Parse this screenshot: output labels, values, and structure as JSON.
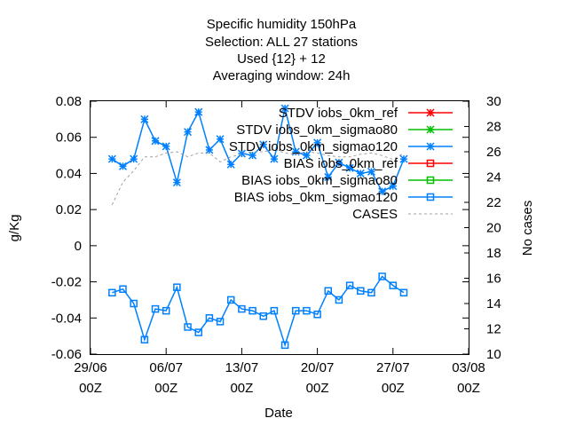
{
  "chart_data": {
    "type": "line",
    "title_lines": [
      "Specific humidity 150hPa",
      "Selection: ALL     27 stations",
      "Used {12} + 12",
      "Averaging window: 24h"
    ],
    "xlabel": "Date",
    "ylabel": "g/Kg",
    "y2label": "No cases",
    "xlim": [
      "2025-06-29 00:00",
      "2025-08-03 00:00"
    ],
    "ylim": [
      -0.06,
      0.08
    ],
    "y2lim": [
      10,
      30
    ],
    "x_ticks": [
      {
        "line1": "29/06",
        "line2": "00Z",
        "day": 0
      },
      {
        "line1": "06/07",
        "line2": "00Z",
        "day": 7
      },
      {
        "line1": "13/07",
        "line2": "00Z",
        "day": 14
      },
      {
        "line1": "20/07",
        "line2": "00Z",
        "day": 21
      },
      {
        "line1": "27/07",
        "line2": "00Z",
        "day": 28
      },
      {
        "line1": "03/08",
        "line2": "00Z",
        "day": 35
      }
    ],
    "y_ticks": [
      "0.08",
      "0.06",
      "0.04",
      "0.02",
      "0",
      "-0.02",
      "-0.04",
      "-0.06"
    ],
    "y_tick_values": [
      0.08,
      0.06,
      0.04,
      0.02,
      0,
      -0.02,
      -0.04,
      -0.06
    ],
    "y2_ticks": [
      "30",
      "28",
      "26",
      "24",
      "22",
      "20",
      "18",
      "16",
      "14",
      "12",
      "10"
    ],
    "y2_tick_values": [
      30,
      28,
      26,
      24,
      22,
      20,
      18,
      16,
      14,
      12,
      10
    ],
    "grid": false,
    "legend_position": "top-right",
    "x_days": [
      2,
      3,
      4,
      5,
      6,
      7,
      8,
      9,
      10,
      11,
      12,
      13,
      14,
      15,
      16,
      17,
      18,
      19,
      20,
      21,
      22,
      23,
      24,
      25,
      26,
      27,
      28,
      29,
      30,
      31
    ],
    "series": [
      {
        "name": "STDV iobs_0km_ref",
        "color": "#ff0000",
        "marker": "star",
        "axis": "y1",
        "values": []
      },
      {
        "name": "STDV iobs_0km_sigmao80",
        "color": "#00c000",
        "marker": "star",
        "axis": "y1",
        "values": []
      },
      {
        "name": "STDV iobs_0km_sigmao120",
        "color": "#0080ff",
        "marker": "star",
        "axis": "y1",
        "values": [
          0.048,
          0.044,
          0.048,
          0.07,
          0.058,
          0.055,
          0.035,
          0.063,
          0.074,
          0.053,
          0.059,
          0.045,
          0.051,
          0.05,
          0.056,
          0.048,
          0.076,
          0.052,
          0.05,
          0.057,
          0.038,
          0.046,
          0.043,
          0.04,
          0.041,
          0.03,
          0.033,
          0.048,
          null,
          null
        ]
      },
      {
        "name": "BIAS iobs_0km_ref",
        "color": "#ff0000",
        "marker": "square",
        "axis": "y1",
        "values": []
      },
      {
        "name": "BIAS iobs_0km_sigmao80",
        "color": "#00c000",
        "marker": "square",
        "axis": "y1",
        "values": []
      },
      {
        "name": "BIAS iobs_0km_sigmao120",
        "color": "#0080ff",
        "marker": "square",
        "axis": "y1",
        "values": [
          -0.026,
          -0.024,
          -0.032,
          -0.052,
          -0.035,
          -0.036,
          -0.023,
          -0.045,
          -0.048,
          -0.04,
          -0.042,
          -0.03,
          -0.035,
          -0.036,
          -0.039,
          -0.036,
          -0.055,
          -0.036,
          -0.036,
          -0.038,
          -0.025,
          -0.03,
          -0.022,
          -0.025,
          -0.026,
          -0.017,
          -0.022,
          -0.026,
          null,
          null
        ]
      },
      {
        "name": "CASES",
        "color": "#a0a0a0",
        "marker": "none",
        "dashed": true,
        "axis": "y2",
        "values": [
          21.8,
          23.6,
          24.5,
          25.6,
          25.6,
          25.9,
          26.0,
          25.6,
          25.9,
          25.9,
          25.2,
          25.6,
          25.8,
          26.0,
          26.0,
          26.2,
          25.9,
          25.8,
          26.0,
          25.9,
          25.7,
          25.6,
          25.6,
          25.8,
          25.9,
          25.7,
          25.4,
          25.9,
          null,
          null
        ]
      }
    ]
  }
}
